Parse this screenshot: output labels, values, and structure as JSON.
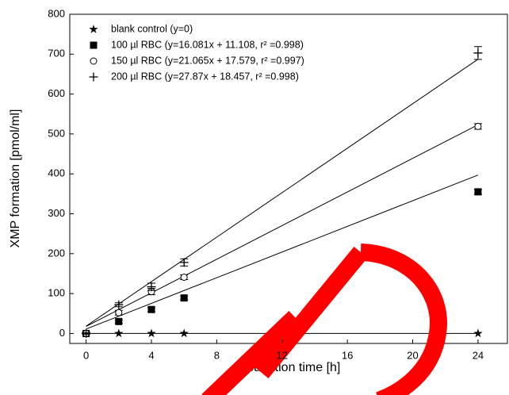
{
  "chart_data": {
    "type": "scatter",
    "x_label": "Incubation time [h]",
    "y_label": "XMP formation [pmol/ml]",
    "xlim": [
      -1,
      25.8
    ],
    "xticks": [
      0,
      4,
      8,
      12,
      16,
      20,
      24
    ],
    "ylim": [
      -25,
      800
    ],
    "yticks": [
      0,
      100,
      200,
      300,
      400,
      500,
      600,
      700,
      800
    ],
    "legend": "upper left",
    "series": [
      {
        "name": "blank control (y=0)",
        "marker": "star",
        "color": "#000000",
        "x": [
          0,
          2,
          4,
          6,
          24
        ],
        "values": [
          0,
          0,
          0,
          0,
          0
        ],
        "fit": {
          "slope": 0,
          "intercept": 0
        }
      },
      {
        "name": "100 µl RBC (y=16.081x + 11.108, r² =0.998)",
        "marker": "square",
        "color": "#000000",
        "x": [
          0,
          2,
          4,
          6,
          24
        ],
        "values": [
          0,
          30,
          60,
          89,
          355
        ],
        "errors": [
          2,
          4,
          5,
          5,
          6
        ],
        "fit": {
          "slope": 16.081,
          "intercept": 11.108
        }
      },
      {
        "name": "150 µl RBC (y=21.065x + 17.579, r² =0.997)",
        "marker": "circle",
        "color": "#000000",
        "x": [
          0,
          2,
          4,
          6,
          24
        ],
        "values": [
          0,
          52,
          105,
          141,
          519
        ],
        "errors": [
          2,
          6,
          8,
          6,
          7
        ],
        "fit": {
          "slope": 21.065,
          "intercept": 17.579
        }
      },
      {
        "name": "200 µl RBC (y=27.87x   + 18.457, r² =0.998)",
        "marker": "plus",
        "color": "#000000",
        "x": [
          0,
          2,
          4,
          6,
          24
        ],
        "values": [
          0,
          72,
          117,
          178,
          703
        ],
        "errors": [
          2,
          5,
          9,
          9,
          16
        ],
        "fit": {
          "slope": 27.87,
          "intercept": 18.457
        }
      }
    ]
  }
}
